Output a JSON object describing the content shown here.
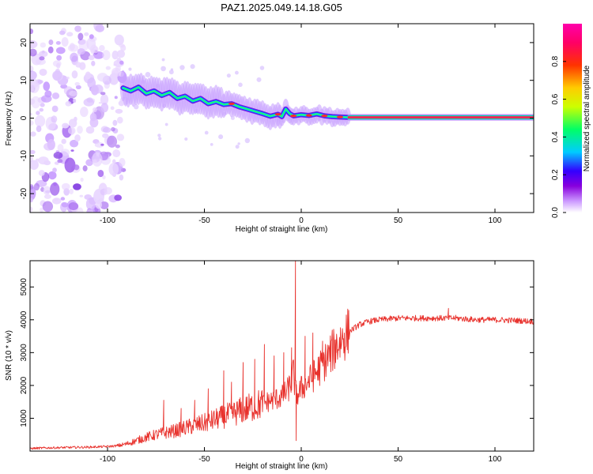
{
  "title": "PAZ1.2025.049.14.18.G05",
  "colors": {
    "snr_line": "#e8322d",
    "axis": "#000000"
  },
  "chart_data": [
    {
      "type": "heatmap",
      "title": "PAZ1.2025.049.14.18.G05",
      "xlabel": "Height of straight line (km)",
      "ylabel": "Frequency (Hz)",
      "xlim": [
        -140,
        120
      ],
      "ylim": [
        -25,
        25
      ],
      "x_ticks": [
        -100,
        -50,
        0,
        50,
        100
      ],
      "y_ticks": [
        -20,
        -10,
        0,
        10,
        20
      ],
      "x_tick_labels": [
        "-100",
        "-50",
        "0",
        "50",
        "100"
      ],
      "y_tick_labels": [
        "-20",
        "-10",
        "0",
        "10",
        "20"
      ],
      "colorbar": {
        "label": "Normalized spectral amplitude",
        "range": [
          0,
          1
        ],
        "ticks": [
          0.0,
          0.2,
          0.4,
          0.6,
          0.8
        ],
        "tick_labels": [
          "0.0",
          "0.2",
          "0.4",
          "0.6",
          "0.8"
        ],
        "colormap": [
          "#ffffff",
          "#cc99ff",
          "#8800dd",
          "#3300ff",
          "#00ccff",
          "#00ff66",
          "#ccff00",
          "#ffcc00",
          "#ff3300",
          "#ff0066",
          "#ff00aa"
        ]
      },
      "ridge": [
        {
          "x": -92,
          "y": 8.0
        },
        {
          "x": -88,
          "y": 7.2
        },
        {
          "x": -84,
          "y": 8.2
        },
        {
          "x": -80,
          "y": 6.5
        },
        {
          "x": -76,
          "y": 7.2
        },
        {
          "x": -72,
          "y": 6.0
        },
        {
          "x": -68,
          "y": 6.8
        },
        {
          "x": -64,
          "y": 5.2
        },
        {
          "x": -60,
          "y": 5.8
        },
        {
          "x": -56,
          "y": 4.5
        },
        {
          "x": -52,
          "y": 5.2
        },
        {
          "x": -48,
          "y": 3.8
        },
        {
          "x": -44,
          "y": 4.4
        },
        {
          "x": -40,
          "y": 3.6
        },
        {
          "x": -36,
          "y": 3.8
        },
        {
          "x": -32,
          "y": 3.0
        },
        {
          "x": -28,
          "y": 2.4
        },
        {
          "x": -24,
          "y": 1.8
        },
        {
          "x": -20,
          "y": 1.2
        },
        {
          "x": -16,
          "y": 0.5
        },
        {
          "x": -12,
          "y": 1.0
        },
        {
          "x": -10,
          "y": 0.4
        },
        {
          "x": -8,
          "y": 2.4
        },
        {
          "x": -6,
          "y": 1.2
        },
        {
          "x": -4,
          "y": 0.6
        },
        {
          "x": 0,
          "y": 0.9
        },
        {
          "x": 4,
          "y": 0.7
        },
        {
          "x": 8,
          "y": 1.1
        },
        {
          "x": 12,
          "y": 0.6
        },
        {
          "x": 16,
          "y": 0.4
        },
        {
          "x": 20,
          "y": 0.3
        },
        {
          "x": 24,
          "y": 0.2
        },
        {
          "x": 120,
          "y": 0.2
        }
      ]
    },
    {
      "type": "line",
      "xlabel": "Height of straight line (km)",
      "ylabel": "SNR (10 * v/v)",
      "xlim": [
        -140,
        120
      ],
      "ylim": [
        0,
        5800
      ],
      "x_ticks": [
        -100,
        -50,
        0,
        50,
        100
      ],
      "y_ticks": [
        1000,
        2000,
        3000,
        4000,
        5000
      ],
      "x_tick_labels": [
        "-100",
        "-50",
        "0",
        "50",
        "100"
      ],
      "y_tick_labels": [
        "1000",
        "2000",
        "3000",
        "4000",
        "5000"
      ],
      "series": [
        {
          "x": [
            -140,
            -130,
            -120,
            -110,
            -100,
            -95,
            -90,
            -85,
            -80,
            -75,
            -70,
            -65,
            -60,
            -55,
            -50,
            -45,
            -40,
            -35,
            -30,
            -25,
            -20,
            -15,
            -10,
            -7,
            -5,
            -4,
            -3,
            -2,
            0,
            5,
            10,
            15,
            20,
            25,
            30,
            35,
            40,
            50,
            60,
            70,
            80,
            90,
            100,
            110,
            120
          ],
          "y": [
            80,
            100,
            110,
            120,
            140,
            160,
            220,
            320,
            420,
            500,
            560,
            620,
            700,
            780,
            850,
            950,
            1050,
            1150,
            1250,
            1350,
            1450,
            1550,
            1650,
            1850,
            2100,
            2400,
            1800,
            1700,
            1900,
            2200,
            2550,
            2950,
            3350,
            3650,
            3850,
            3950,
            4000,
            4050,
            4050,
            4050,
            4050,
            4000,
            4000,
            3980,
            3950
          ],
          "spikes": [
            {
              "x": -71,
              "y": 1550
            },
            {
              "x": -62,
              "y": 1300
            },
            {
              "x": -55,
              "y": 1550
            },
            {
              "x": -48,
              "y": 1900
            },
            {
              "x": -40,
              "y": 2450
            },
            {
              "x": -36,
              "y": 2100
            },
            {
              "x": -30,
              "y": 2700
            },
            {
              "x": -24,
              "y": 2800
            },
            {
              "x": -19,
              "y": 3250
            },
            {
              "x": -14,
              "y": 2900
            },
            {
              "x": -9,
              "y": 3000
            },
            {
              "x": -5,
              "y": 3150
            },
            {
              "x": -3,
              "y": 5800
            },
            {
              "x": -2.6,
              "y": 320
            },
            {
              "x": 2,
              "y": 3500
            },
            {
              "x": 6,
              "y": 3600
            },
            {
              "x": 11,
              "y": 3350
            },
            {
              "x": 18,
              "y": 3400
            },
            {
              "x": 76,
              "y": 4350
            }
          ]
        }
      ]
    }
  ]
}
